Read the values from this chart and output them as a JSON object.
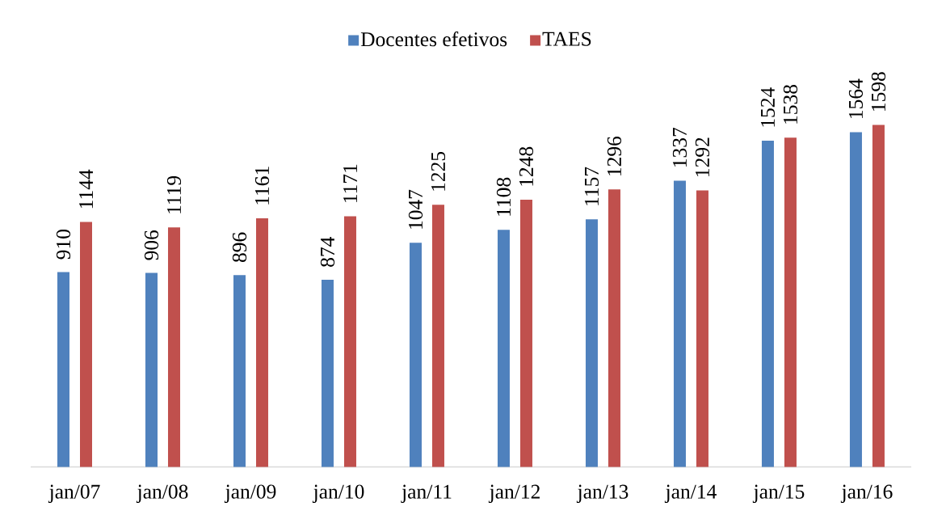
{
  "chart_data": {
    "type": "bar",
    "categories": [
      "jan/07",
      "jan/08",
      "jan/09",
      "jan/10",
      "jan/11",
      "jan/12",
      "jan/13",
      "jan/14",
      "jan/15",
      "jan/16"
    ],
    "series": [
      {
        "name": "Docentes efetivos",
        "color": "#4f81bd",
        "values": [
          910,
          906,
          896,
          874,
          1047,
          1108,
          1157,
          1337,
          1524,
          1564
        ]
      },
      {
        "name": "TAES",
        "color": "#c0504d",
        "values": [
          1144,
          1119,
          1161,
          1171,
          1225,
          1248,
          1296,
          1292,
          1538,
          1598
        ]
      }
    ],
    "data_labels": true,
    "legend": "top"
  }
}
